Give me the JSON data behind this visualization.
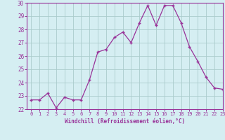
{
  "x": [
    0,
    1,
    2,
    3,
    4,
    5,
    6,
    7,
    8,
    9,
    10,
    11,
    12,
    13,
    14,
    15,
    16,
    17,
    18,
    19,
    20,
    21,
    22,
    23
  ],
  "y": [
    22.7,
    22.7,
    23.2,
    22.1,
    22.9,
    22.7,
    22.7,
    24.2,
    26.3,
    26.5,
    27.4,
    27.8,
    27.0,
    28.5,
    29.8,
    28.3,
    29.8,
    29.8,
    28.5,
    26.7,
    25.6,
    24.4,
    23.6,
    23.5
  ],
  "line_color": "#993399",
  "marker_color": "#993399",
  "bg_color": "#d5eef2",
  "grid_color": "#aacccc",
  "axis_color": "#993399",
  "tick_color": "#993399",
  "xlabel": "Windchill (Refroidissement éolien,°C)",
  "ylim": [
    22,
    30
  ],
  "xlim": [
    -0.5,
    23
  ],
  "yticks": [
    22,
    23,
    24,
    25,
    26,
    27,
    28,
    29,
    30
  ],
  "xticks": [
    0,
    1,
    2,
    3,
    4,
    5,
    6,
    7,
    8,
    9,
    10,
    11,
    12,
    13,
    14,
    15,
    16,
    17,
    18,
    19,
    20,
    21,
    22,
    23
  ]
}
